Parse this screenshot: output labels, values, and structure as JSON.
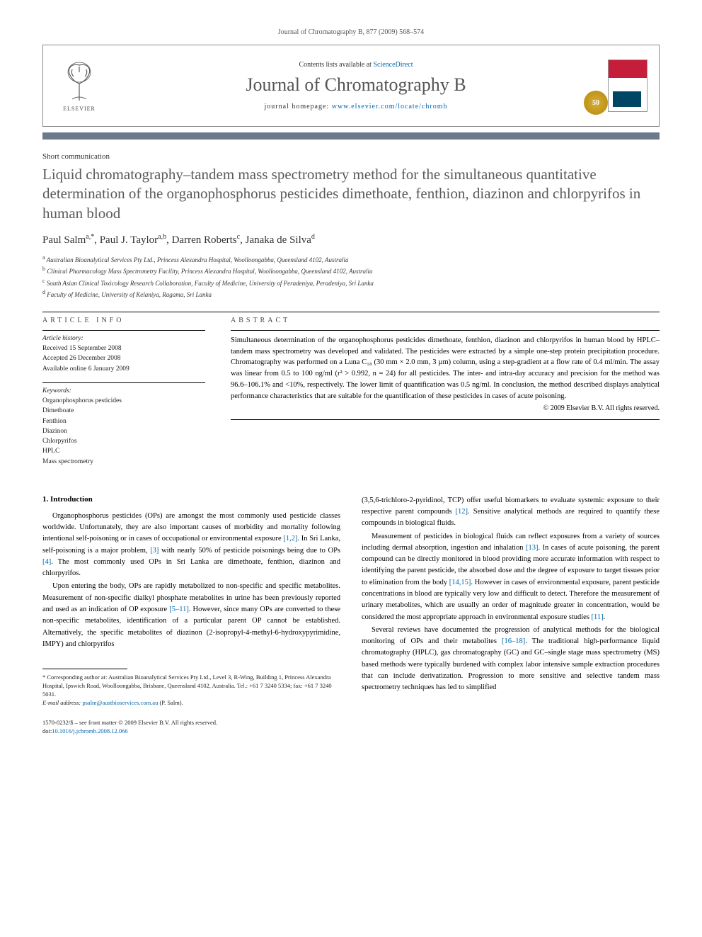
{
  "journal_ref": "Journal of Chromatography B, 877 (2009) 568–574",
  "masthead": {
    "contents_prefix": "Contents lists available at ",
    "contents_link": "ScienceDirect",
    "journal_title": "Journal of Chromatography B",
    "homepage_prefix": "journal homepage: ",
    "homepage_link": "www.elsevier.com/locate/chromb",
    "publisher": "ELSEVIER",
    "badge": "50"
  },
  "article": {
    "type": "Short communication",
    "title": "Liquid chromatography–tandem mass spectrometry method for the simultaneous quantitative determination of the organophosphorus pesticides dimethoate, fenthion, diazinon and chlorpyrifos in human blood",
    "authors_html": "Paul Salm<sup>a,*</sup>, Paul J. Taylor<sup>a,b</sup>, Darren Roberts<sup>c</sup>, Janaka de Silva<sup>d</sup>",
    "affiliations": [
      {
        "sup": "a",
        "text": "Australian Bioanalytical Services Pty Ltd., Princess Alexandra Hospital, Woolloongabba, Queensland 4102, Australia"
      },
      {
        "sup": "b",
        "text": "Clinical Pharmacology Mass Spectrometry Facility, Princess Alexandra Hospital, Woolloongabba, Queensland 4102, Australia"
      },
      {
        "sup": "c",
        "text": "South Asian Clinical Toxicology Research Collaboration, Faculty of Medicine, University of Peradeniya, Peradeniya, Sri Lanka"
      },
      {
        "sup": "d",
        "text": "Faculty of Medicine, University of Kelaniya, Ragama, Sri Lanka"
      }
    ]
  },
  "info": {
    "heading": "ARTICLE INFO",
    "history_label": "Article history:",
    "history": [
      "Received 15 September 2008",
      "Accepted 26 December 2008",
      "Available online 6 January 2009"
    ],
    "keywords_label": "Keywords:",
    "keywords": [
      "Organophosphorus pesticides",
      "Dimethoate",
      "Fenthion",
      "Diazinon",
      "Chlorpyrifos",
      "HPLC",
      "Mass spectrometry"
    ]
  },
  "abstract": {
    "heading": "ABSTRACT",
    "text": "Simultaneous determination of the organophosphorus pesticides dimethoate, fenthion, diazinon and chlorpyrifos in human blood by HPLC–tandem mass spectrometry was developed and validated. The pesticides were extracted by a simple one-step protein precipitation procedure. Chromatography was performed on a Luna C₁₈ (30 mm × 2.0 mm, 3 µm) column, using a step-gradient at a flow rate of 0.4 ml/min. The assay was linear from 0.5 to 100 ng/ml (r² > 0.992, n = 24) for all pesticides. The inter- and intra-day accuracy and precision for the method was 96.6–106.1% and <10%, respectively. The lower limit of quantification was 0.5 ng/ml. In conclusion, the method described displays analytical performance characteristics that are suitable for the quantification of these pesticides in cases of acute poisoning.",
    "copyright": "© 2009 Elsevier B.V. All rights reserved."
  },
  "body": {
    "section_heading": "1.  Introduction",
    "left_paragraphs": [
      "Organophosphorus pesticides (OPs) are amongst the most commonly used pesticide classes worldwide. Unfortunately, they are also important causes of morbidity and mortality following intentional self-poisoning or in cases of occupational or environmental exposure [1,2]. In Sri Lanka, self-poisoning is a major problem, [3] with nearly 50% of pesticide poisonings being due to OPs [4]. The most commonly used OPs in Sri Lanka are dimethoate, fenthion, diazinon and chlorpyrifos.",
      "Upon entering the body, OPs are rapidly metabolized to non-specific and specific metabolites. Measurement of non-specific dialkyl phosphate metabolites in urine has been previously reported and used as an indication of OP exposure [5–11]. However, since many OPs are converted to these non-specific metabolites, identification of a particular parent OP cannot be established. Alternatively, the specific metabolites of diazinon (2-isopropyl-4-methyl-6-hydroxypyrimidine, IMPY) and chlorpyrifos"
    ],
    "right_paragraphs": [
      "(3,5,6-trichloro-2-pyridinol, TCP) offer useful biomarkers to evaluate systemic exposure to their respective parent compounds [12]. Sensitive analytical methods are required to quantify these compounds in biological fluids.",
      "Measurement of pesticides in biological fluids can reflect exposures from a variety of sources including dermal absorption, ingestion and inhalation [13]. In cases of acute poisoning, the parent compound can be directly monitored in blood providing more accurate information with respect to identifying the parent pesticide, the absorbed dose and the degree of exposure to target tissues prior to elimination from the body [14,15]. However in cases of environmental exposure, parent pesticide concentrations in blood are typically very low and difficult to detect. Therefore the measurement of urinary metabolites, which are usually an order of magnitude greater in concentration, would be considered the most appropriate approach in environmental exposure studies [11].",
      "Several reviews have documented the progression of analytical methods for the biological monitoring of OPs and their metabolites [16–18]. The traditional high-performance liquid chromatography (HPLC), gas chromatography (GC) and GC–single stage mass spectrometry (MS) based methods were typically burdened with complex labor intensive sample extraction procedures that can include derivatization. Progression to more sensitive and selective tandem mass spectrometry techniques has led to simplified"
    ]
  },
  "footnote": {
    "symbol": "*",
    "text": "Corresponding author at: Australian Bioanalytical Services Pty Ltd., Level 3, R-Wing, Building 1, Princess Alexandra Hospital, Ipswich Road, Woolloongabba, Brisbane, Queensland 4102, Australia. Tel.: +61 7 3240 5334; fax: +61 7 3240 5031.",
    "email_label": "E-mail address: ",
    "email": "psalm@austbioservices.com.au",
    "email_suffix": " (P. Salm)."
  },
  "page_footer": {
    "issn": "1570-0232/$ – see front matter © 2009 Elsevier B.V. All rights reserved.",
    "doi_label": "doi:",
    "doi": "10.1016/j.jchromb.2008.12.066"
  },
  "colors": {
    "bar": "#6a7a8a",
    "link": "#0066aa",
    "title_gray": "#5a5a5a",
    "cover_red": "#c41e3a"
  }
}
